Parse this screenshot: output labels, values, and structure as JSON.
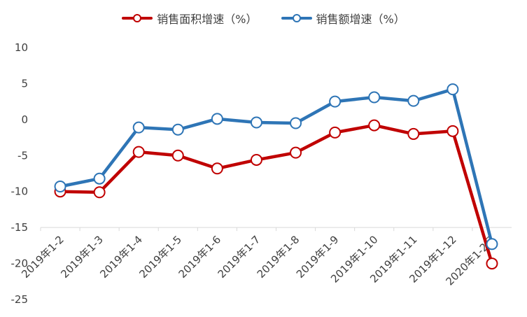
{
  "chart_data": {
    "type": "line",
    "categories": [
      "2019年1-2",
      "2019年1-3",
      "2019年1-4",
      "2019年1-5",
      "2019年1-6",
      "2019年1-7",
      "2019年1-8",
      "2019年1-9",
      "2019年1-10",
      "2019年1-11",
      "2019年1-12",
      "2020年1-2月"
    ],
    "series": [
      {
        "name": "销售面积增速（%）",
        "color": "#c00000",
        "values": [
          -10.0,
          -10.1,
          -4.5,
          -5.0,
          -6.8,
          -5.6,
          -4.6,
          -1.8,
          -0.8,
          -2.0,
          -1.6,
          -20.0
        ]
      },
      {
        "name": "销售额增速（%）",
        "color": "#2e75b6",
        "values": [
          -9.3,
          -8.2,
          -1.1,
          -1.4,
          0.1,
          -0.4,
          -0.5,
          2.5,
          3.1,
          2.6,
          4.2,
          -17.3
        ]
      }
    ],
    "ylim": [
      -25,
      10
    ],
    "yticks": [
      10,
      5,
      0,
      -5,
      -10,
      -15,
      -20,
      -25
    ],
    "grid": false,
    "legend_position": "top-center",
    "title": "",
    "xlabel": "",
    "ylabel": ""
  }
}
